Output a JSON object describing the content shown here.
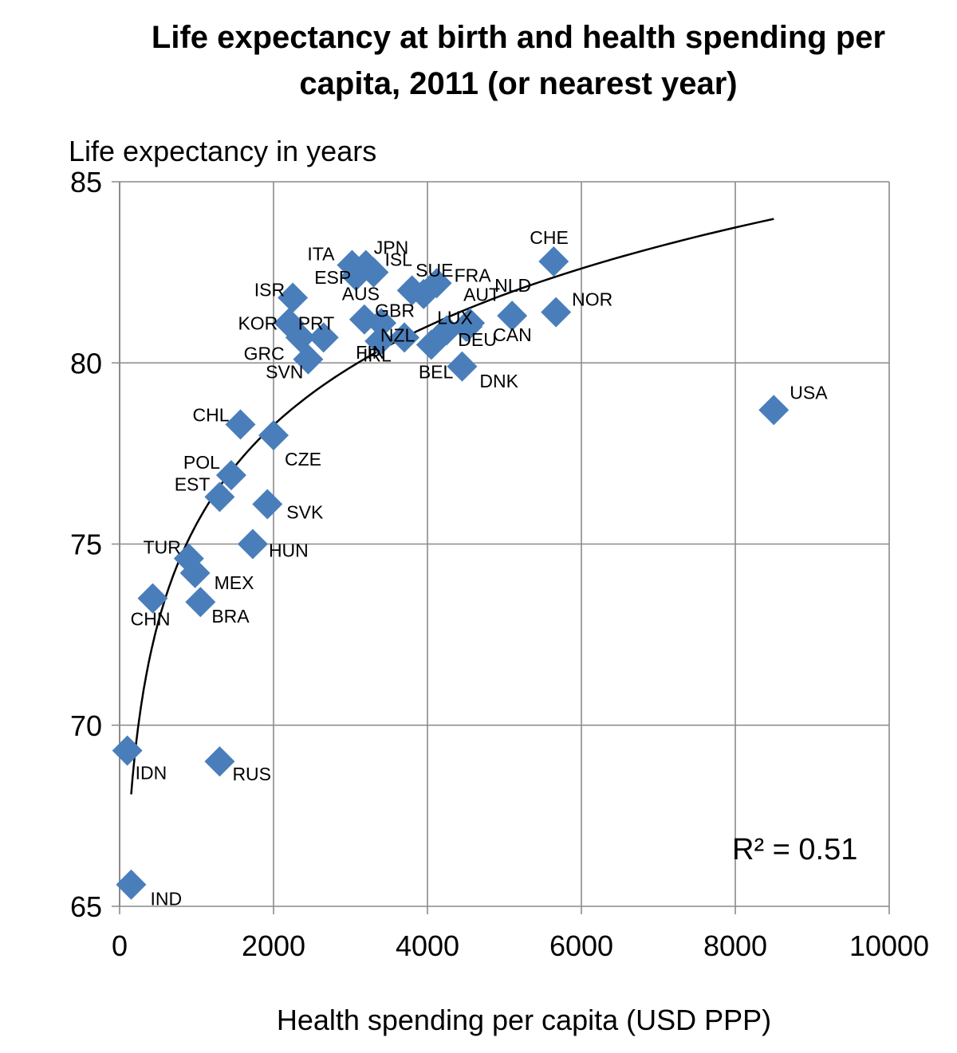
{
  "chart_data": {
    "type": "scatter",
    "title_line1": "Life expectancy at birth and health spending per",
    "title_line2": "capita, 2011 (or nearest year)",
    "xlabel": "Health spending per capita (USD PPP)",
    "ylabel": "Life expectancy in years",
    "xlim": [
      0,
      10000
    ],
    "ylim": [
      65,
      85
    ],
    "xticks": [
      0,
      2000,
      4000,
      6000,
      8000,
      10000
    ],
    "yticks": [
      65,
      70,
      75,
      80,
      85
    ],
    "grid": true,
    "marker_color": "#4A7EBB",
    "trendline": {
      "type": "logarithmic",
      "r2_label": "R² = 0.51",
      "x_range": [
        150,
        8500
      ]
    },
    "points": [
      {
        "label": "USA",
        "x": 8500,
        "y": 78.7
      },
      {
        "label": "NOR",
        "x": 5670,
        "y": 81.4
      },
      {
        "label": "CHE",
        "x": 5640,
        "y": 82.8
      },
      {
        "label": "NLD",
        "x": 5100,
        "y": 81.3
      },
      {
        "label": "CAN",
        "x": 4520,
        "y": 81.0
      },
      {
        "label": "AUT",
        "x": 4550,
        "y": 81.1
      },
      {
        "label": "FRA",
        "x": 4120,
        "y": 82.2
      },
      {
        "label": "DEU",
        "x": 4500,
        "y": 81.0
      },
      {
        "label": "DNK",
        "x": 4450,
        "y": 79.9
      },
      {
        "label": "BEL",
        "x": 4050,
        "y": 80.5
      },
      {
        "label": "LUX",
        "x": 4250,
        "y": 80.9
      },
      {
        "label": "SUE",
        "x": 3950,
        "y": 81.9
      },
      {
        "label": "ISL",
        "x": 3300,
        "y": 82.5
      },
      {
        "label": "AUS",
        "x": 3800,
        "y": 82.0
      },
      {
        "label": "IRL",
        "x": 3700,
        "y": 80.7
      },
      {
        "label": "GBR",
        "x": 3400,
        "y": 81.1
      },
      {
        "label": "FIN",
        "x": 3380,
        "y": 80.6
      },
      {
        "label": "JPN",
        "x": 3200,
        "y": 82.7
      },
      {
        "label": "ITA",
        "x": 3020,
        "y": 82.7
      },
      {
        "label": "ESP",
        "x": 3070,
        "y": 82.4
      },
      {
        "label": "NZL",
        "x": 3180,
        "y": 81.2
      },
      {
        "label": "ISR",
        "x": 2250,
        "y": 81.8
      },
      {
        "label": "KOR",
        "x": 2200,
        "y": 81.1
      },
      {
        "label": "PRT",
        "x": 2650,
        "y": 80.7
      },
      {
        "label": "GRC",
        "x": 2350,
        "y": 80.7
      },
      {
        "label": "SVN",
        "x": 2450,
        "y": 80.1
      },
      {
        "label": "CHL",
        "x": 1570,
        "y": 78.3
      },
      {
        "label": "CZE",
        "x": 2000,
        "y": 78.0
      },
      {
        "label": "POL",
        "x": 1450,
        "y": 76.9
      },
      {
        "label": "EST",
        "x": 1300,
        "y": 76.3
      },
      {
        "label": "SVK",
        "x": 1920,
        "y": 76.1
      },
      {
        "label": "HUN",
        "x": 1730,
        "y": 75.0
      },
      {
        "label": "TUR",
        "x": 900,
        "y": 74.6
      },
      {
        "label": "MEX",
        "x": 980,
        "y": 74.2
      },
      {
        "label": "BRA",
        "x": 1050,
        "y": 73.4
      },
      {
        "label": "CHN",
        "x": 430,
        "y": 73.5
      },
      {
        "label": "IDN",
        "x": 100,
        "y": 69.3
      },
      {
        "label": "RUS",
        "x": 1300,
        "y": 69.0
      },
      {
        "label": "IND",
        "x": 150,
        "y": 65.6
      }
    ]
  }
}
